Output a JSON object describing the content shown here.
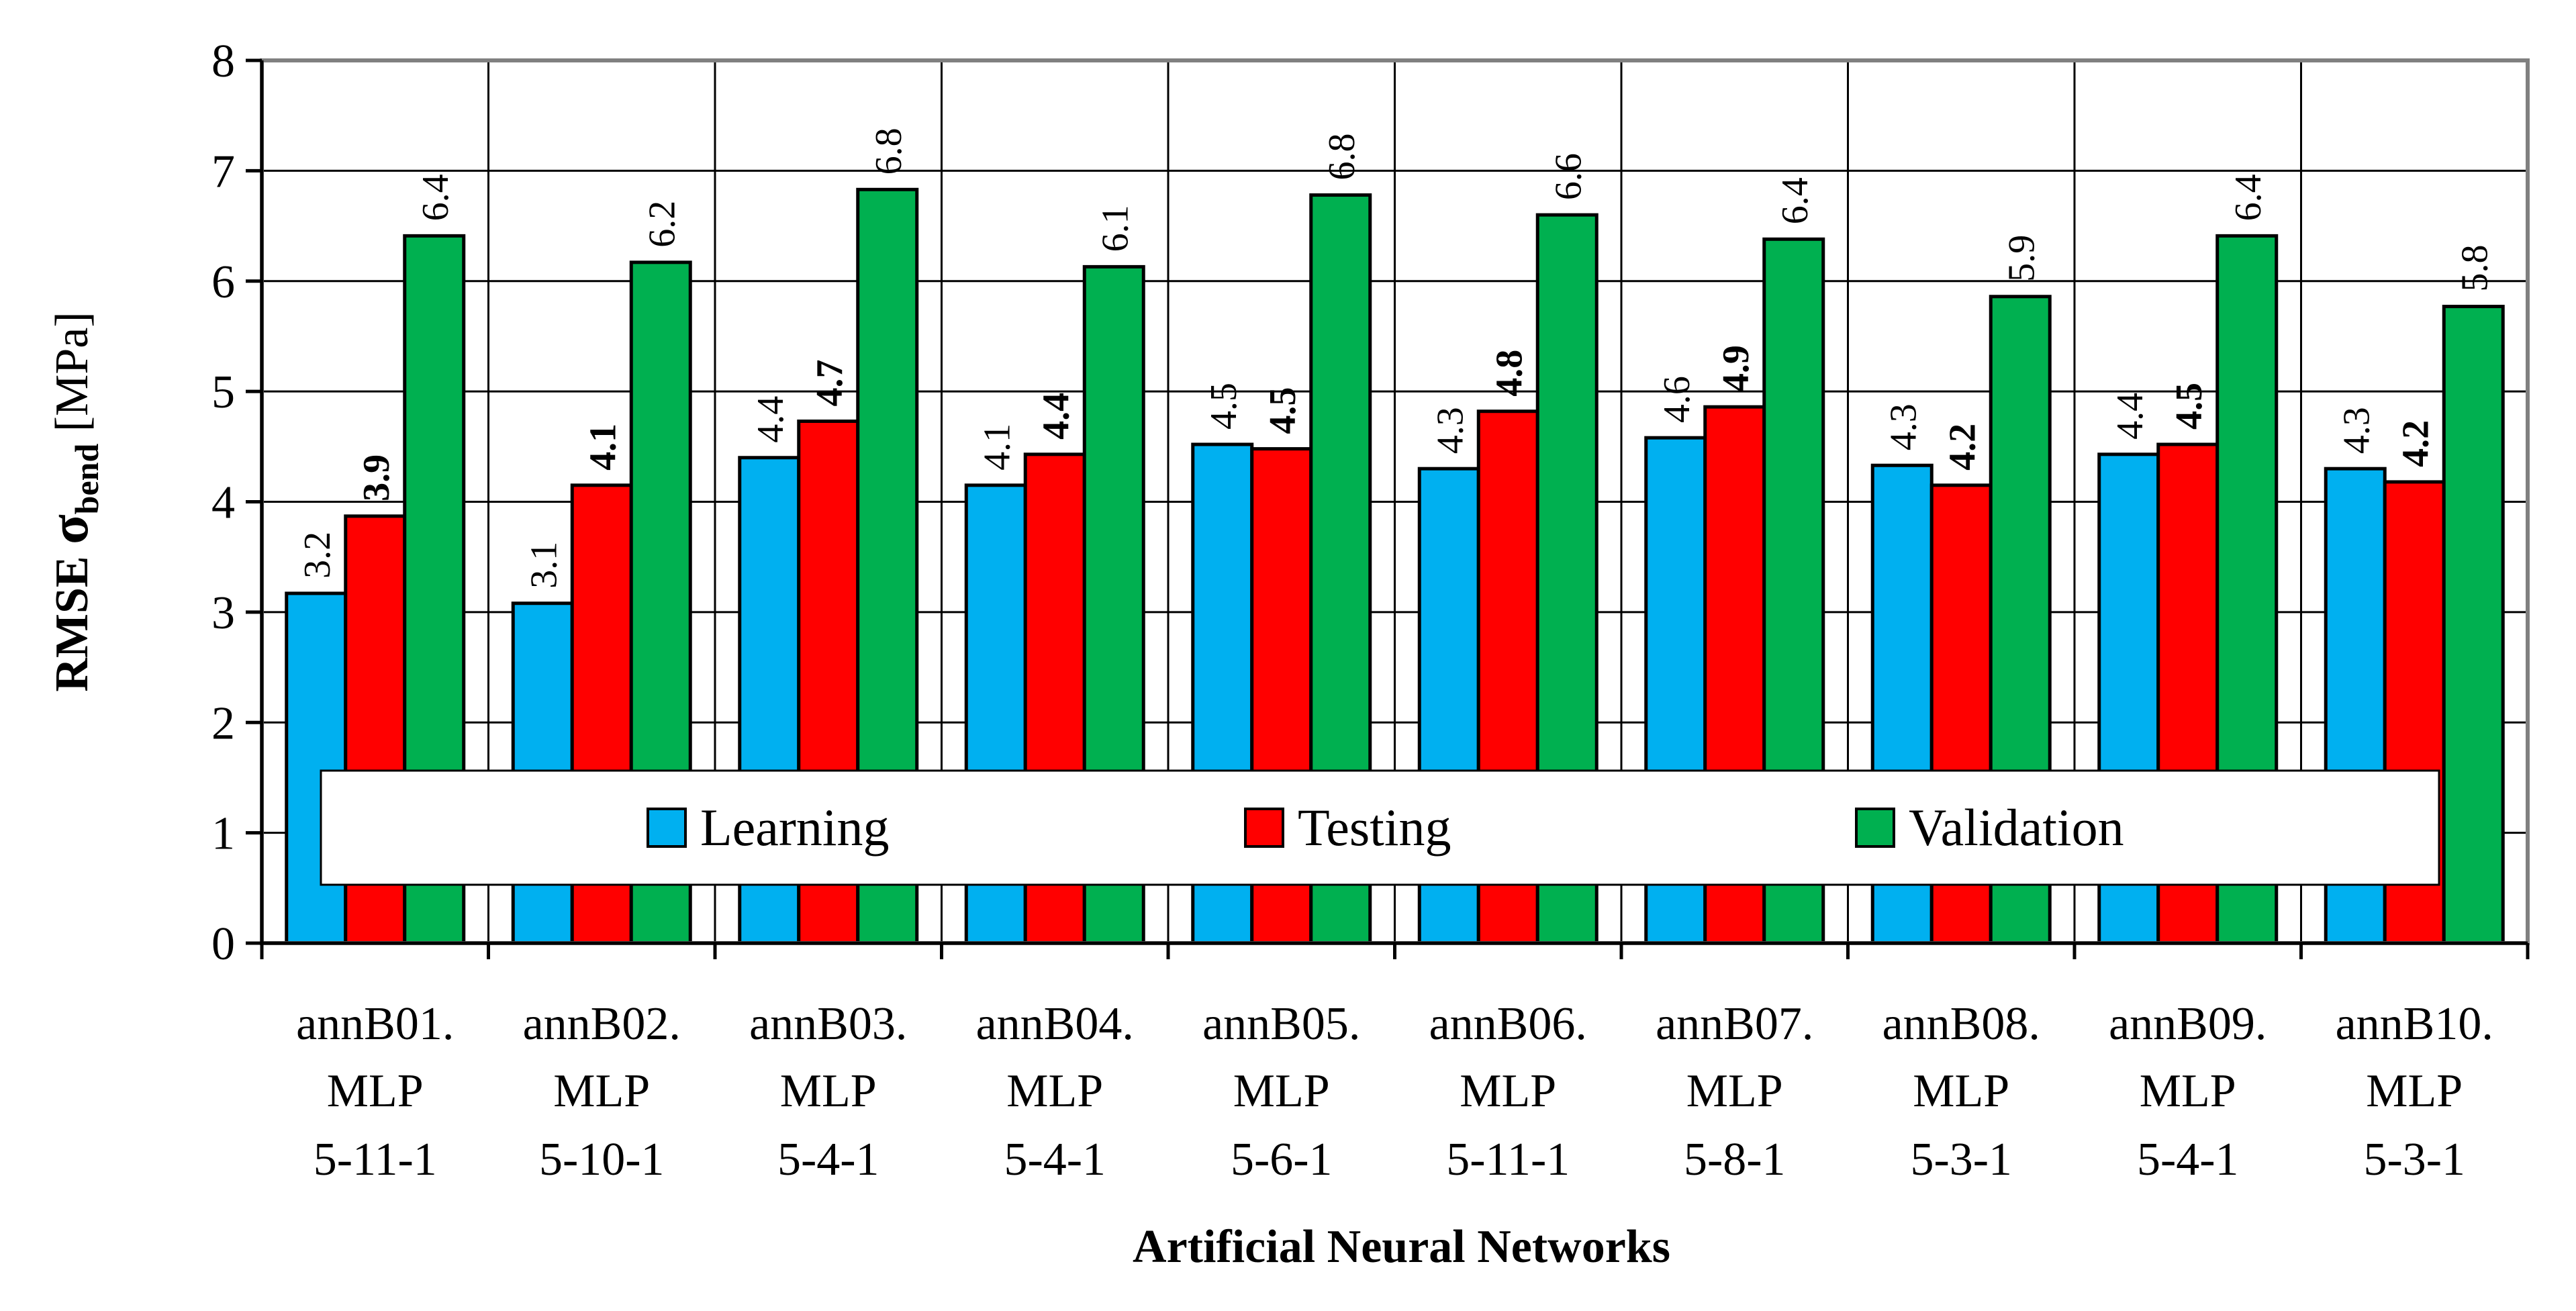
{
  "chart_data": {
    "type": "bar",
    "title": "",
    "xlabel": "Artificial Neural Networks",
    "ylabel": {
      "prefix": "RMSE",
      "symbol": "σ",
      "subscript": "bend",
      "unit": "[MPa]"
    },
    "ylim": [
      0,
      8
    ],
    "yticks": [
      "0",
      "1",
      "2",
      "3",
      "4",
      "5",
      "6",
      "7",
      "8"
    ],
    "grid": "horizontal-and-category",
    "legend_position": "bottom-center",
    "categories": [
      [
        "annB01.",
        "MLP",
        "5-11-1"
      ],
      [
        "annB02.",
        "MLP",
        "5-10-1"
      ],
      [
        "annB03.",
        "MLP",
        "5-4-1"
      ],
      [
        "annB04.",
        "MLP",
        "5-4-1"
      ],
      [
        "annB05.",
        "MLP",
        "5-6-1"
      ],
      [
        "annB06.",
        "MLP",
        "5-11-1"
      ],
      [
        "annB07.",
        "MLP",
        "5-8-1"
      ],
      [
        "annB08.",
        "MLP",
        "5-3-1"
      ],
      [
        "annB09.",
        "MLP",
        "5-4-1"
      ],
      [
        "annB10.",
        "MLP",
        "5-3-1"
      ]
    ],
    "series": [
      {
        "name": "Learning",
        "color": "#00b0f0",
        "label_bold": false,
        "values": [
          3.17,
          3.08,
          4.4,
          4.15,
          4.52,
          4.3,
          4.58,
          4.33,
          4.43,
          4.3
        ],
        "labels": [
          "3.2",
          "3.1",
          "4.4",
          "4.1",
          "4.5",
          "4.3",
          "4.6",
          "4.3",
          "4.4",
          "4.3"
        ]
      },
      {
        "name": "Testing",
        "color": "#ff0000",
        "label_bold": true,
        "values": [
          3.87,
          4.15,
          4.73,
          4.43,
          4.48,
          4.82,
          4.86,
          4.15,
          4.52,
          4.18
        ],
        "labels": [
          "3.9",
          "4.1",
          "4.7",
          "4.4",
          "4.5",
          "4.8",
          "4.9",
          "4.2",
          "4.5",
          "4.2"
        ]
      },
      {
        "name": "Validation",
        "color": "#00b050",
        "label_bold": false,
        "values": [
          6.41,
          6.17,
          6.83,
          6.13,
          6.78,
          6.6,
          6.38,
          5.86,
          6.41,
          5.77
        ],
        "labels": [
          "6.4",
          "6.2",
          "6.8",
          "6.1",
          "6.8",
          "6.6",
          "6.4",
          "5.9",
          "6.4",
          "5.8"
        ]
      }
    ]
  }
}
